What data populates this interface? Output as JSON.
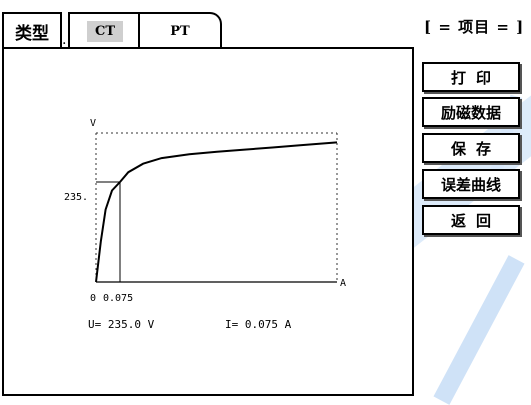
{
  "tabs": {
    "type_label": "类型",
    "separator": ".",
    "ct_label": "CT",
    "pt_label": "PT"
  },
  "side_menu": {
    "title": "[ = 项目 = ]",
    "items": [
      "打印",
      "励磁数据",
      "保存",
      "误差曲线",
      "返回"
    ]
  },
  "chart_data": {
    "type": "line",
    "ylabel": "V",
    "xlabel": "A",
    "y_tick": "235.",
    "x_ticks": [
      "0",
      "0.075"
    ],
    "marker": {
      "x": 0.075,
      "y": 235.0
    },
    "series": [
      {
        "values_x": [
          0,
          0.015,
          0.03,
          0.05,
          0.075,
          0.12,
          0.2,
          0.3,
          0.45,
          0.6,
          0.75,
          0.9,
          1.05,
          1.25
        ],
        "values_y": [
          0,
          95,
          170,
          215,
          235,
          258,
          278,
          291,
          300,
          306,
          311,
          316,
          321,
          328
        ]
      }
    ],
    "grid": false
  },
  "readout": {
    "voltage": "U=  235.0 V",
    "current": "I=  0.075 A"
  },
  "colors": {
    "accent_stripe": "#d9e9fa",
    "ct_highlight": "#cfcfcf"
  }
}
